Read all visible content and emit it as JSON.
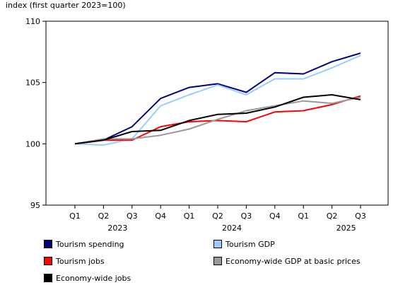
{
  "chart_data": {
    "type": "line",
    "ylabel": "index (first quarter 2023=100)",
    "ylim": [
      95,
      110
    ],
    "yticks": [
      "95",
      "100",
      "105",
      "110"
    ],
    "categories": [
      "Q1",
      "Q2",
      "Q3",
      "Q4",
      "Q1",
      "Q2",
      "Q3",
      "Q4",
      "Q1",
      "Q2",
      "Q3"
    ],
    "year_labels": [
      {
        "label": "2023",
        "category_index": 1
      },
      {
        "label": "2024",
        "category_index": 5
      },
      {
        "label": "2025",
        "category_index": 9
      }
    ],
    "grid": false,
    "legend_position": "bottom",
    "series": [
      {
        "name": "Tourism spending",
        "color": "#000080",
        "values": [
          100.0,
          100.3,
          101.4,
          103.7,
          104.6,
          104.9,
          104.2,
          105.8,
          105.7,
          106.7,
          107.4
        ]
      },
      {
        "name": "Tourism GDP",
        "color": "#99ccff",
        "values": [
          100.0,
          99.9,
          100.4,
          103.1,
          104.0,
          104.8,
          104.0,
          105.3,
          105.3,
          106.2,
          107.2
        ]
      },
      {
        "name": "Tourism jobs",
        "color": "#ff0000",
        "values": [
          100.0,
          100.3,
          100.3,
          101.4,
          101.8,
          101.9,
          101.8,
          102.6,
          102.7,
          103.2,
          103.9
        ]
      },
      {
        "name": "Economy-wide GDP at basic prices",
        "color": "#999999",
        "values": [
          100.0,
          100.4,
          100.4,
          100.7,
          101.2,
          102.0,
          102.7,
          103.1,
          103.5,
          103.3,
          103.8
        ]
      },
      {
        "name": "Economy-wide jobs",
        "color": "#000000",
        "values": [
          100.0,
          100.3,
          101.0,
          101.1,
          101.9,
          102.4,
          102.5,
          103.0,
          103.8,
          104.0,
          103.6
        ]
      }
    ]
  }
}
